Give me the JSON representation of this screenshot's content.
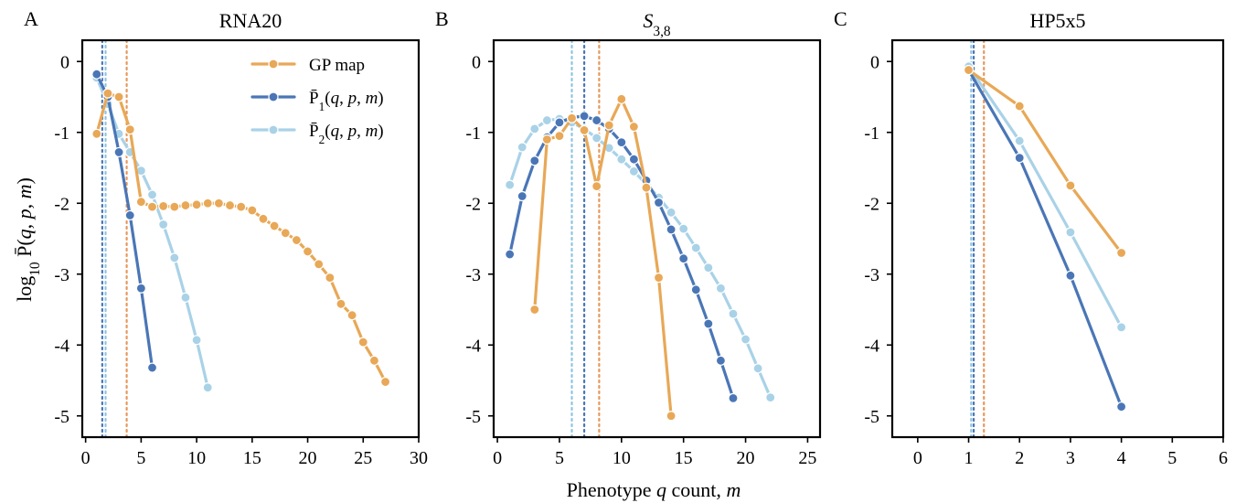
{
  "figure": {
    "xlabel_parts": [
      "Phenotype ",
      "q",
      " count, ",
      "m"
    ],
    "ylabel_parts": [
      "log",
      "10",
      " P̄(",
      "q",
      ", ",
      "p",
      ", ",
      "m",
      ")"
    ],
    "legend": [
      {
        "key": "gp",
        "label": "GP map"
      },
      {
        "key": "p1",
        "label_parts": [
          "P̄",
          "1",
          "(",
          "q",
          ", ",
          "p",
          ", ",
          "m",
          ")"
        ]
      },
      {
        "key": "p2",
        "label_parts": [
          "P̄",
          "2",
          "(",
          "q",
          ", ",
          "p",
          ", ",
          "m",
          ")"
        ]
      }
    ]
  },
  "colors": {
    "gp": "#e8a857",
    "p1": "#4a76b6",
    "p2": "#a9d2e7",
    "vline_gp": "#e8975a",
    "vline_p1": "#4a76b6",
    "vline_p2": "#8ec4e2"
  },
  "chart_data": [
    {
      "type": "line",
      "panel_label": "A",
      "title": "RNA20",
      "xlim": [
        -0.3,
        30
      ],
      "ylim": [
        -5.3,
        0.3
      ],
      "xticks": [
        0,
        5,
        10,
        15,
        20,
        25,
        30
      ],
      "yticks": [
        0,
        -1,
        -2,
        -3,
        -4,
        -5
      ],
      "ytick_labels": [
        "0",
        "-1",
        "-2",
        "-3",
        "-4",
        "-5"
      ],
      "legend_position": "top-right",
      "vlines": [
        {
          "series": "p1",
          "x": 1.5
        },
        {
          "series": "p2",
          "x": 1.8
        },
        {
          "series": "gp",
          "x": 3.7
        }
      ],
      "series": [
        {
          "key": "gp",
          "name": "GP map",
          "x": [
            1,
            2,
            3,
            4,
            5,
            6,
            7,
            8,
            9,
            10,
            11,
            12,
            13,
            14,
            15,
            16,
            17,
            18,
            19,
            20,
            21,
            22,
            23,
            24,
            25,
            26,
            27
          ],
          "y": [
            -1.02,
            -0.45,
            -0.5,
            -0.96,
            -1.98,
            -2.05,
            -2.04,
            -2.05,
            -2.03,
            -2.02,
            -2.0,
            -2.0,
            -2.03,
            -2.05,
            -2.1,
            -2.22,
            -2.32,
            -2.42,
            -2.52,
            -2.68,
            -2.86,
            -3.05,
            -3.42,
            -3.58,
            -3.96,
            -4.22,
            -4.52
          ]
        },
        {
          "key": "p1",
          "x": [
            1,
            2,
            3,
            4,
            5,
            6
          ],
          "y": [
            -0.18,
            -0.5,
            -1.28,
            -2.17,
            -3.2,
            -4.32
          ]
        },
        {
          "key": "p2",
          "x": [
            1,
            2,
            3,
            4,
            5,
            6,
            7,
            8,
            9,
            10,
            11
          ],
          "y": [
            -0.23,
            -0.6,
            -1.02,
            -1.28,
            -1.54,
            -1.88,
            -2.3,
            -2.77,
            -3.33,
            -3.93,
            -4.6
          ]
        }
      ]
    },
    {
      "type": "line",
      "panel_label": "B",
      "title_parts": [
        "S",
        "3,8"
      ],
      "xlim": [
        -0.3,
        26
      ],
      "ylim": [
        -5.3,
        0.3
      ],
      "xticks": [
        0,
        5,
        10,
        15,
        20,
        25
      ],
      "yticks": [
        0,
        -1,
        -2,
        -3,
        -4,
        -5
      ],
      "ytick_labels": [
        "0",
        "-1",
        "-2",
        "-3",
        "-4",
        "-5"
      ],
      "vlines": [
        {
          "series": "p2",
          "x": 6.0
        },
        {
          "series": "p1",
          "x": 7.0
        },
        {
          "series": "gp",
          "x": 8.2
        }
      ],
      "series": [
        {
          "key": "gp",
          "x": [
            3,
            4,
            5,
            6,
            7,
            8,
            9,
            10,
            11,
            12,
            13,
            14
          ],
          "y": [
            -3.5,
            -1.1,
            -1.05,
            -0.8,
            -0.97,
            -1.76,
            -0.9,
            -0.53,
            -0.92,
            -1.78,
            -3.05,
            -5.0
          ]
        },
        {
          "key": "p1",
          "x": [
            1,
            2,
            3,
            4,
            5,
            6,
            7,
            8,
            9,
            10,
            11,
            12,
            13,
            14,
            15,
            16,
            17,
            18,
            19
          ],
          "y": [
            -2.72,
            -1.9,
            -1.4,
            -1.07,
            -0.86,
            -0.79,
            -0.77,
            -0.83,
            -0.95,
            -1.14,
            -1.38,
            -1.68,
            -1.99,
            -2.37,
            -2.78,
            -3.22,
            -3.7,
            -4.22,
            -4.75
          ]
        },
        {
          "key": "p2",
          "x": [
            1,
            2,
            3,
            4,
            5,
            6,
            7,
            8,
            9,
            10,
            11,
            12,
            13,
            14,
            15,
            16,
            17,
            18,
            19,
            20,
            21,
            22
          ],
          "y": [
            -1.74,
            -1.21,
            -0.95,
            -0.83,
            -0.81,
            -0.86,
            -0.95,
            -1.08,
            -1.22,
            -1.38,
            -1.55,
            -1.73,
            -1.92,
            -2.13,
            -2.36,
            -2.63,
            -2.91,
            -3.2,
            -3.56,
            -3.92,
            -4.33,
            -4.74
          ]
        }
      ]
    },
    {
      "type": "line",
      "panel_label": "C",
      "title": "HP5x5",
      "xlim": [
        -0.5,
        6
      ],
      "ylim": [
        -5.3,
        0.3
      ],
      "xticks": [
        0,
        1,
        2,
        3,
        4,
        5,
        6
      ],
      "yticks": [
        0,
        -1,
        -2,
        -3,
        -4,
        -5
      ],
      "ytick_labels": [
        "0",
        "-1",
        "-2",
        "-3",
        "-4",
        "-5"
      ],
      "vlines": [
        {
          "series": "p2",
          "x": 1.05
        },
        {
          "series": "p1",
          "x": 1.1
        },
        {
          "series": "gp",
          "x": 1.3
        }
      ],
      "series": [
        {
          "key": "gp",
          "x": [
            1,
            2,
            3,
            4
          ],
          "y": [
            -0.12,
            -0.63,
            -1.75,
            -2.7
          ]
        },
        {
          "key": "p1",
          "x": [
            1,
            2,
            3,
            4
          ],
          "y": [
            -0.12,
            -1.36,
            -3.02,
            -4.87
          ]
        },
        {
          "key": "p2",
          "x": [
            1,
            2,
            3,
            4
          ],
          "y": [
            -0.07,
            -1.12,
            -2.41,
            -3.75
          ]
        }
      ]
    }
  ]
}
